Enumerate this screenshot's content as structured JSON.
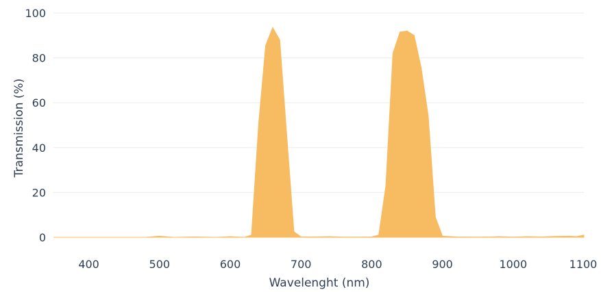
{
  "chart_data": {
    "type": "area",
    "xlabel": "Wavelenght (nm)",
    "ylabel": "Transmission (%)",
    "xlim": [
      350,
      1100
    ],
    "ylim": [
      0,
      100
    ],
    "x_ticks": [
      400,
      500,
      600,
      700,
      800,
      900,
      1000,
      1100
    ],
    "y_ticks": [
      0,
      20,
      40,
      60,
      80,
      100
    ],
    "grid": "horizontal",
    "color": "#f7bb62",
    "series": [
      {
        "x": [
          350,
          400,
          450,
          480,
          500,
          520,
          550,
          580,
          600,
          620,
          630,
          640,
          650,
          660,
          670,
          680,
          690,
          700,
          720,
          740,
          760,
          780,
          800,
          810,
          820,
          830,
          840,
          850,
          860,
          870,
          880,
          890,
          900,
          920,
          950,
          970,
          980,
          1000,
          1020,
          1040,
          1060,
          1080,
          1090,
          1100
        ],
        "y": [
          0,
          0,
          0,
          0,
          0.5,
          0,
          0.2,
          0,
          0.3,
          0,
          1,
          50,
          85.5,
          93.5,
          88,
          45,
          2.5,
          0.2,
          0.2,
          0.3,
          0.1,
          0.1,
          0.2,
          1,
          23,
          82,
          91.5,
          92,
          90,
          75.5,
          54,
          9,
          0.5,
          0.2,
          0.1,
          0.2,
          0.3,
          0.1,
          0.3,
          0.2,
          0.4,
          0.5,
          0.3,
          1
        ]
      }
    ]
  }
}
